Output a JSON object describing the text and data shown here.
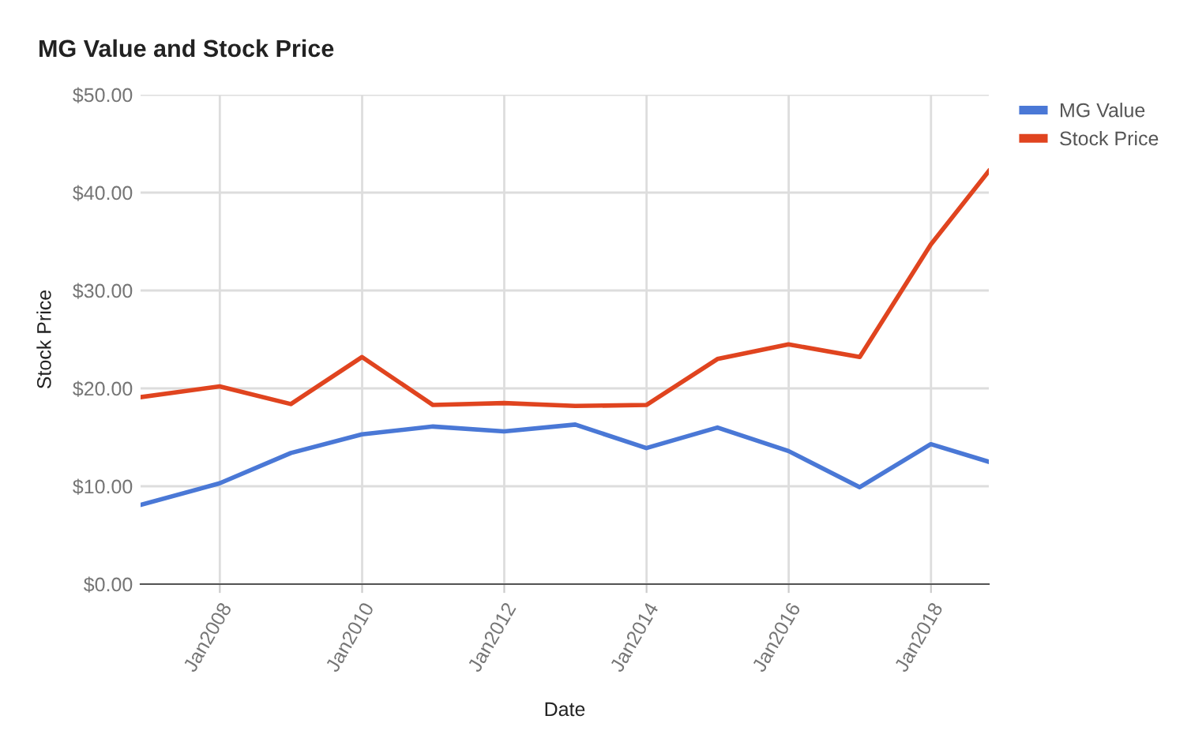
{
  "chart_data": {
    "type": "line",
    "title": "MG Value and Stock Price",
    "xlabel": "Date",
    "ylabel": "Stock Price",
    "x": [
      "2006-11-20",
      "2007-12-31",
      "2008-12-31",
      "2009-12-31",
      "2010-12-31",
      "2011-12-31",
      "2012-12-31",
      "2013-12-31",
      "2014-12-31",
      "2015-12-31",
      "2016-12-31",
      "2017-12-31",
      "2018-10-25"
    ],
    "series": [
      {
        "name": "MG Value",
        "color": "#4a78d6",
        "values": [
          8.1,
          10.3,
          13.4,
          15.3,
          16.1,
          15.6,
          16.3,
          13.9,
          16.0,
          13.6,
          9.9,
          14.3,
          12.5
        ]
      },
      {
        "name": "Stock Price",
        "color": "#e0441f",
        "values": [
          19.1,
          20.2,
          18.4,
          23.2,
          18.3,
          18.5,
          18.2,
          18.3,
          23.0,
          24.5,
          23.2,
          34.7,
          42.2
        ]
      }
    ],
    "xlim": [
      "2006-11-20",
      "2018-10-25"
    ],
    "xticks": [
      {
        "value": "2008-01-01",
        "label": "Jan2008"
      },
      {
        "value": "2010-01-01",
        "label": "Jan2010"
      },
      {
        "value": "2012-01-01",
        "label": "Jan2012"
      },
      {
        "value": "2014-01-01",
        "label": "Jan2014"
      },
      {
        "value": "2016-01-01",
        "label": "Jan2016"
      },
      {
        "value": "2018-01-01",
        "label": "Jan2018"
      }
    ],
    "ylim": [
      0,
      50
    ],
    "yticks": [
      {
        "value": 0,
        "label": "$0.00"
      },
      {
        "value": 10,
        "label": "$10.00"
      },
      {
        "value": 20,
        "label": "$20.00"
      },
      {
        "value": 30,
        "label": "$30.00"
      },
      {
        "value": 40,
        "label": "$40.00"
      },
      {
        "value": 50,
        "label": "$50.00"
      }
    ],
    "grid": true,
    "legend": "top right",
    "marker": "none",
    "line_style": "solid"
  }
}
